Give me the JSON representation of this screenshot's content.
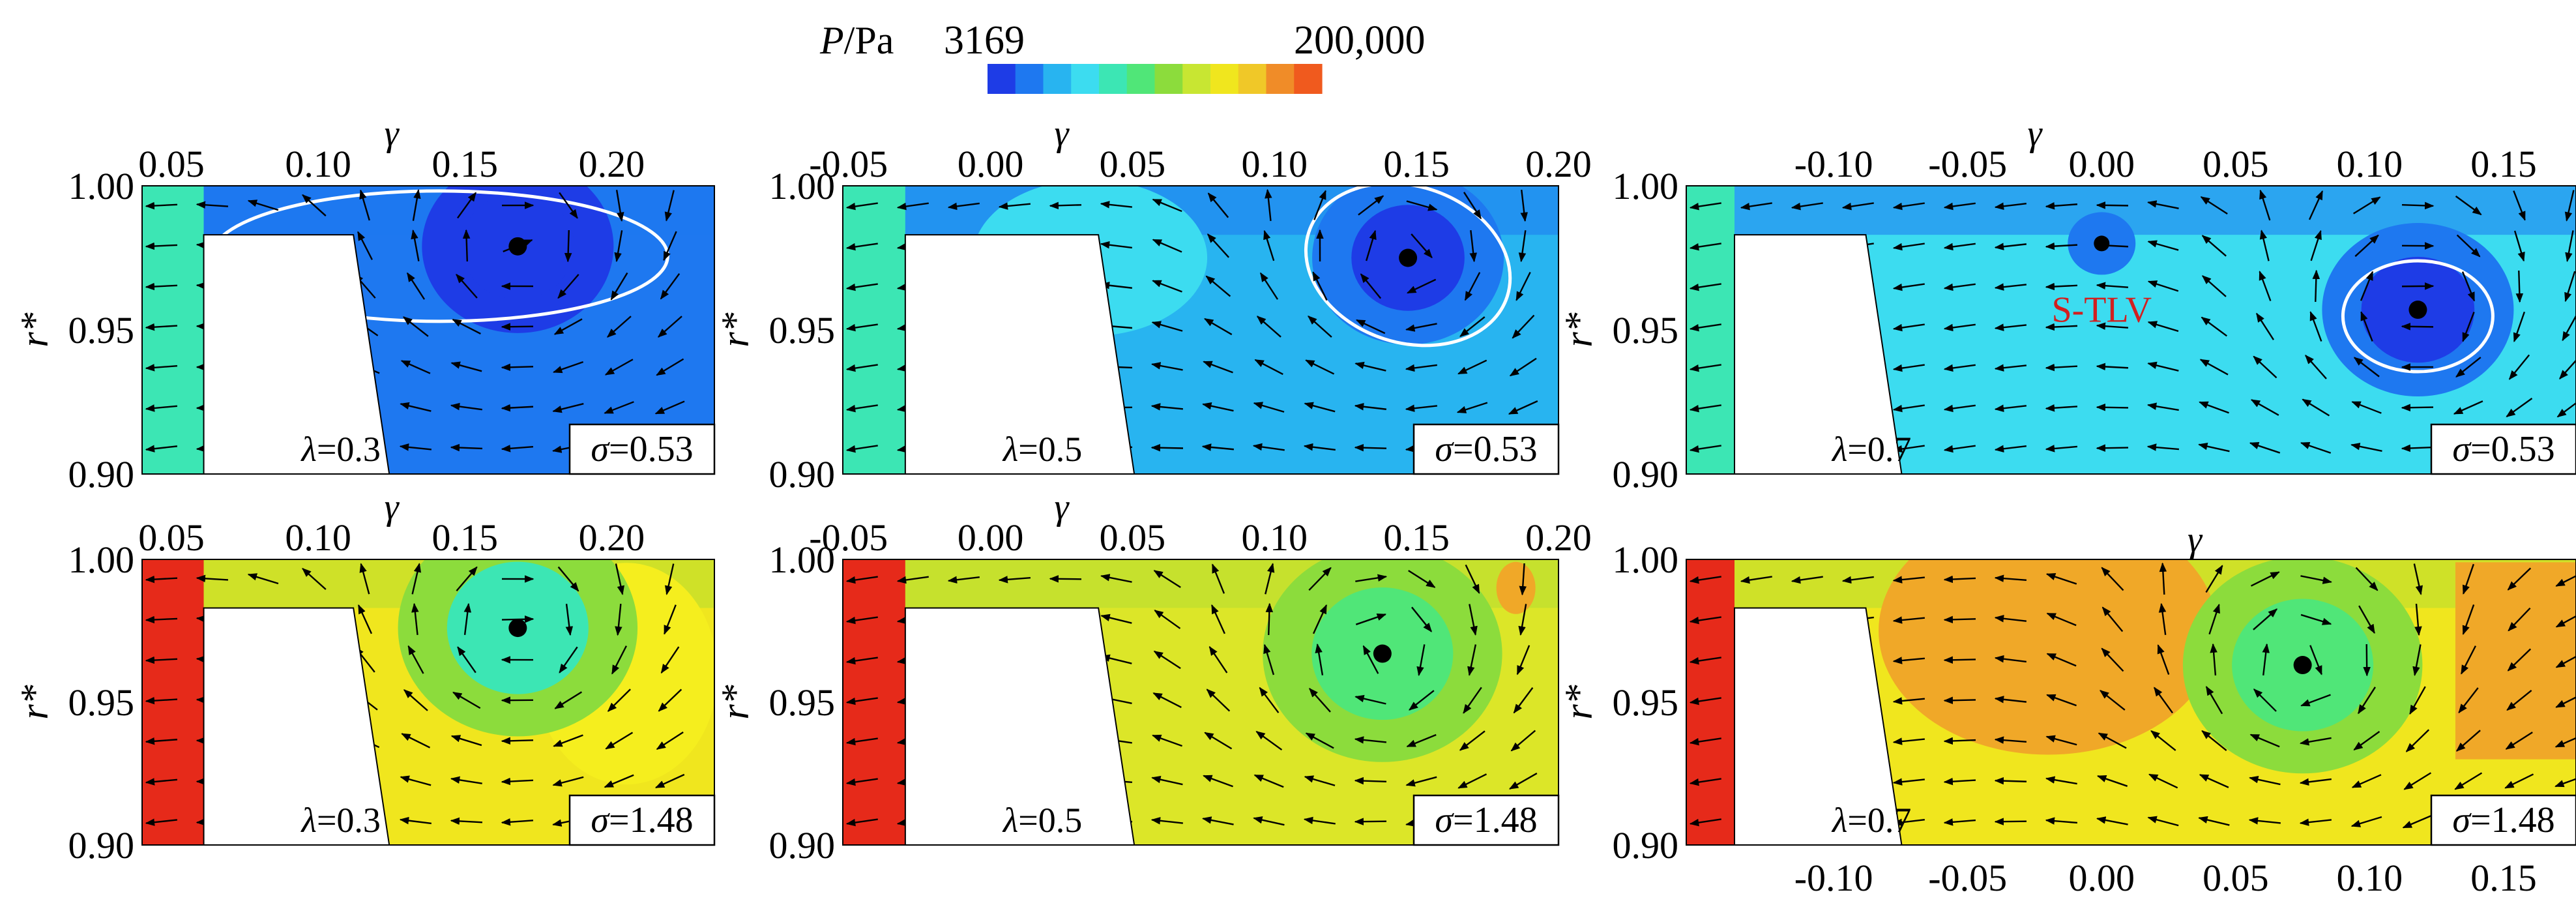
{
  "colorbar": {
    "title": "P/Pa",
    "min_label": "3169",
    "max_label": "200,000",
    "min": 3169,
    "max": 200000,
    "colors": [
      "#1e3ce6",
      "#1e78f0",
      "#28b4f0",
      "#3cdcf0",
      "#3ce6b4",
      "#50e678",
      "#8cdc3c",
      "#c8e632",
      "#f0e61e",
      "#f0c828",
      "#f08c28",
      "#f05a1e"
    ]
  },
  "chart_data": [
    {
      "type": "heatmap",
      "row": 1,
      "col": 1,
      "lambda_label": "λ=0.3",
      "sigma_label": "σ=0.53",
      "xlabel": "γ",
      "ylabel": "r*",
      "xlim": [
        0.04,
        0.235
      ],
      "ylim": [
        0.9,
        1.0
      ],
      "x_ticks": [
        "0.05",
        "0.10",
        "0.15",
        "0.20"
      ],
      "x_tick_values": [
        0.05,
        0.1,
        0.15,
        0.2
      ],
      "x_axis": "top",
      "y_ticks": [
        "1.00",
        "0.95",
        "0.90"
      ],
      "y_tick_values": [
        1.0,
        0.95,
        0.9
      ],
      "background_color": "#1e78f0",
      "vortex_core": {
        "x": 0.168,
        "y": 0.979
      },
      "blade_tip": {
        "x_pressure": 0.061,
        "x_suction": 0.112,
        "gap_top": 0.983
      },
      "labels": []
    },
    {
      "type": "heatmap",
      "row": 1,
      "col": 2,
      "lambda_label": "λ=0.5",
      "sigma_label": "σ=0.53",
      "xlabel": "γ",
      "ylabel": "r*",
      "xlim": [
        -0.052,
        0.2
      ],
      "ylim": [
        0.9,
        1.0
      ],
      "x_ticks": [
        "-0.05",
        "0.00",
        "0.05",
        "0.10",
        "0.15",
        "0.20"
      ],
      "x_tick_values": [
        -0.05,
        0.0,
        0.05,
        0.1,
        0.15,
        0.2
      ],
      "x_axis": "top",
      "y_ticks": [
        "1.00",
        "0.95",
        "0.90"
      ],
      "y_tick_values": [
        1.0,
        0.95,
        0.9
      ],
      "background_color": "#28b4f0",
      "vortex_core": {
        "x": 0.147,
        "y": 0.975
      },
      "blade_tip": {
        "x_pressure": -0.03,
        "x_suction": 0.038,
        "gap_top": 0.983
      },
      "labels": []
    },
    {
      "type": "heatmap",
      "row": 1,
      "col": 3,
      "lambda_label": "λ=0.7",
      "sigma_label": "σ=0.53",
      "xlabel": "γ",
      "ylabel": "r*",
      "xlim": [
        -0.155,
        0.177
      ],
      "ylim": [
        0.9,
        1.0
      ],
      "x_ticks": [
        "-0.10",
        "-0.05",
        "0.00",
        "0.05",
        "0.10",
        "0.15"
      ],
      "x_tick_values": [
        -0.1,
        -0.05,
        0.0,
        0.05,
        0.1,
        0.15
      ],
      "x_axis": "top",
      "y_ticks": [
        "1.00",
        "0.95",
        "0.90"
      ],
      "y_tick_values": [
        1.0,
        0.95,
        0.9
      ],
      "background_color": "#3cdcf0",
      "vortex_core": {
        "x": 0.118,
        "y": 0.957
      },
      "secondary_core": {
        "x": 0.0,
        "y": 0.98
      },
      "blade_tip": {
        "x_pressure": -0.137,
        "x_suction": -0.088,
        "gap_top": 0.983
      },
      "labels": [
        "S-TLV"
      ]
    },
    {
      "type": "heatmap",
      "row": 2,
      "col": 1,
      "lambda_label": "λ=0.3",
      "sigma_label": "σ=1.48",
      "xlabel": "γ",
      "ylabel": "r*",
      "xlim": [
        0.04,
        0.235
      ],
      "ylim": [
        0.9,
        1.0
      ],
      "x_ticks": [
        "0.05",
        "0.10",
        "0.15",
        "0.20"
      ],
      "x_tick_values": [
        0.05,
        0.1,
        0.15,
        0.2
      ],
      "x_axis": "top",
      "y_ticks": [
        "1.00",
        "0.95",
        "0.90"
      ],
      "y_tick_values": [
        1.0,
        0.95,
        0.9
      ],
      "background_color": "#f0e61e",
      "vortex_core": {
        "x": 0.168,
        "y": 0.976
      },
      "blade_tip": {
        "x_pressure": 0.061,
        "x_suction": 0.112,
        "gap_top": 0.983
      },
      "labels": []
    },
    {
      "type": "heatmap",
      "row": 2,
      "col": 2,
      "lambda_label": "λ=0.5",
      "sigma_label": "σ=1.48",
      "xlabel": "γ",
      "ylabel": "r*",
      "xlim": [
        -0.052,
        0.2
      ],
      "ylim": [
        0.9,
        1.0
      ],
      "x_ticks": [
        "-0.05",
        "0.00",
        "0.05",
        "0.10",
        "0.15",
        "0.20"
      ],
      "x_tick_values": [
        -0.05,
        0.0,
        0.05,
        0.1,
        0.15,
        0.2
      ],
      "x_axis": "top",
      "y_ticks": [
        "1.00",
        "0.95",
        "0.90"
      ],
      "y_tick_values": [
        1.0,
        0.95,
        0.9
      ],
      "background_color": "#dce628",
      "vortex_core": {
        "x": 0.138,
        "y": 0.967
      },
      "blade_tip": {
        "x_pressure": -0.03,
        "x_suction": 0.038,
        "gap_top": 0.983
      },
      "labels": []
    },
    {
      "type": "heatmap",
      "row": 2,
      "col": 3,
      "lambda_label": "λ=0.7",
      "sigma_label": "σ=1.48",
      "xlabel": "γ",
      "ylabel": "r*",
      "xlim": [
        -0.155,
        0.177
      ],
      "ylim": [
        0.9,
        1.0
      ],
      "x_ticks": [
        "-0.10",
        "-0.05",
        "0.00",
        "0.05",
        "0.10",
        "0.15"
      ],
      "x_tick_values": [
        -0.1,
        -0.05,
        0.0,
        0.05,
        0.1,
        0.15
      ],
      "x_axis": "bottom",
      "y_ticks": [
        "1.00",
        "0.95",
        "0.90"
      ],
      "y_tick_values": [
        1.0,
        0.95,
        0.9
      ],
      "background_color": "#f0e61e",
      "vortex_core": {
        "x": 0.075,
        "y": 0.963
      },
      "blade_tip": {
        "x_pressure": -0.137,
        "x_suction": -0.088,
        "gap_top": 0.983
      },
      "labels": []
    }
  ]
}
